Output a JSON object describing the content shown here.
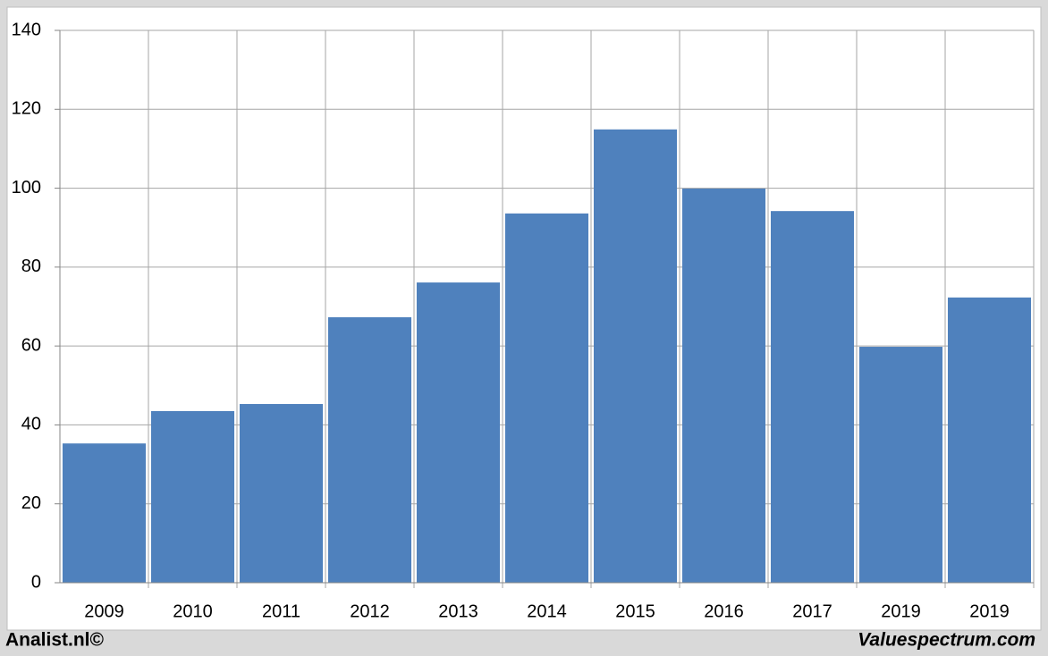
{
  "chart_data": {
    "type": "bar",
    "categories": [
      "2009",
      "2010",
      "2011",
      "2012",
      "2013",
      "2014",
      "2015",
      "2016",
      "2017",
      "2019",
      "2019"
    ],
    "values": [
      35.3,
      43.5,
      45.3,
      67.3,
      76.1,
      93.6,
      114.9,
      99.9,
      94.2,
      59.8,
      72.3
    ],
    "color": "#4f81bd",
    "ylim": [
      0,
      140
    ],
    "yticks": [
      0,
      20,
      40,
      60,
      80,
      100,
      120,
      140
    ],
    "grid": true,
    "credit_left": "Analist.nl©",
    "credit_right": "Valuespectrum.com"
  }
}
